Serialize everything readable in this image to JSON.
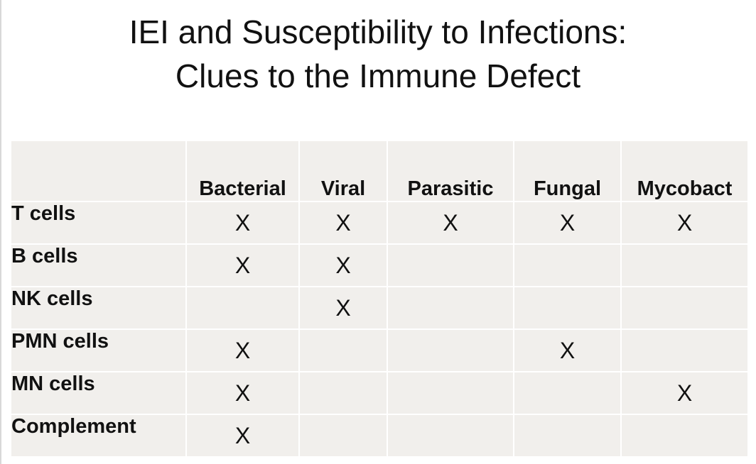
{
  "slide": {
    "title_line1": "IEI and Susceptibility to Infections:",
    "title_line2": "Clues to the Immune Defect"
  },
  "table": {
    "columns": [
      "",
      "Bacterial",
      "Viral",
      "Parasitic",
      "Fungal",
      "Mycobact"
    ],
    "rows": [
      {
        "label": "T cells",
        "cells": [
          "X",
          "X",
          "X",
          "X",
          "X"
        ]
      },
      {
        "label": "B cells",
        "cells": [
          "X",
          "X",
          "",
          "",
          ""
        ]
      },
      {
        "label": "NK cells",
        "cells": [
          "",
          "X",
          "",
          "",
          ""
        ]
      },
      {
        "label": "PMN cells",
        "cells": [
          "X",
          "",
          "",
          "X",
          ""
        ]
      },
      {
        "label": "MN cells",
        "cells": [
          "X",
          "",
          "",
          "",
          "X"
        ]
      },
      {
        "label": "Complement",
        "cells": [
          "X",
          "",
          "",
          "",
          ""
        ]
      }
    ]
  }
}
